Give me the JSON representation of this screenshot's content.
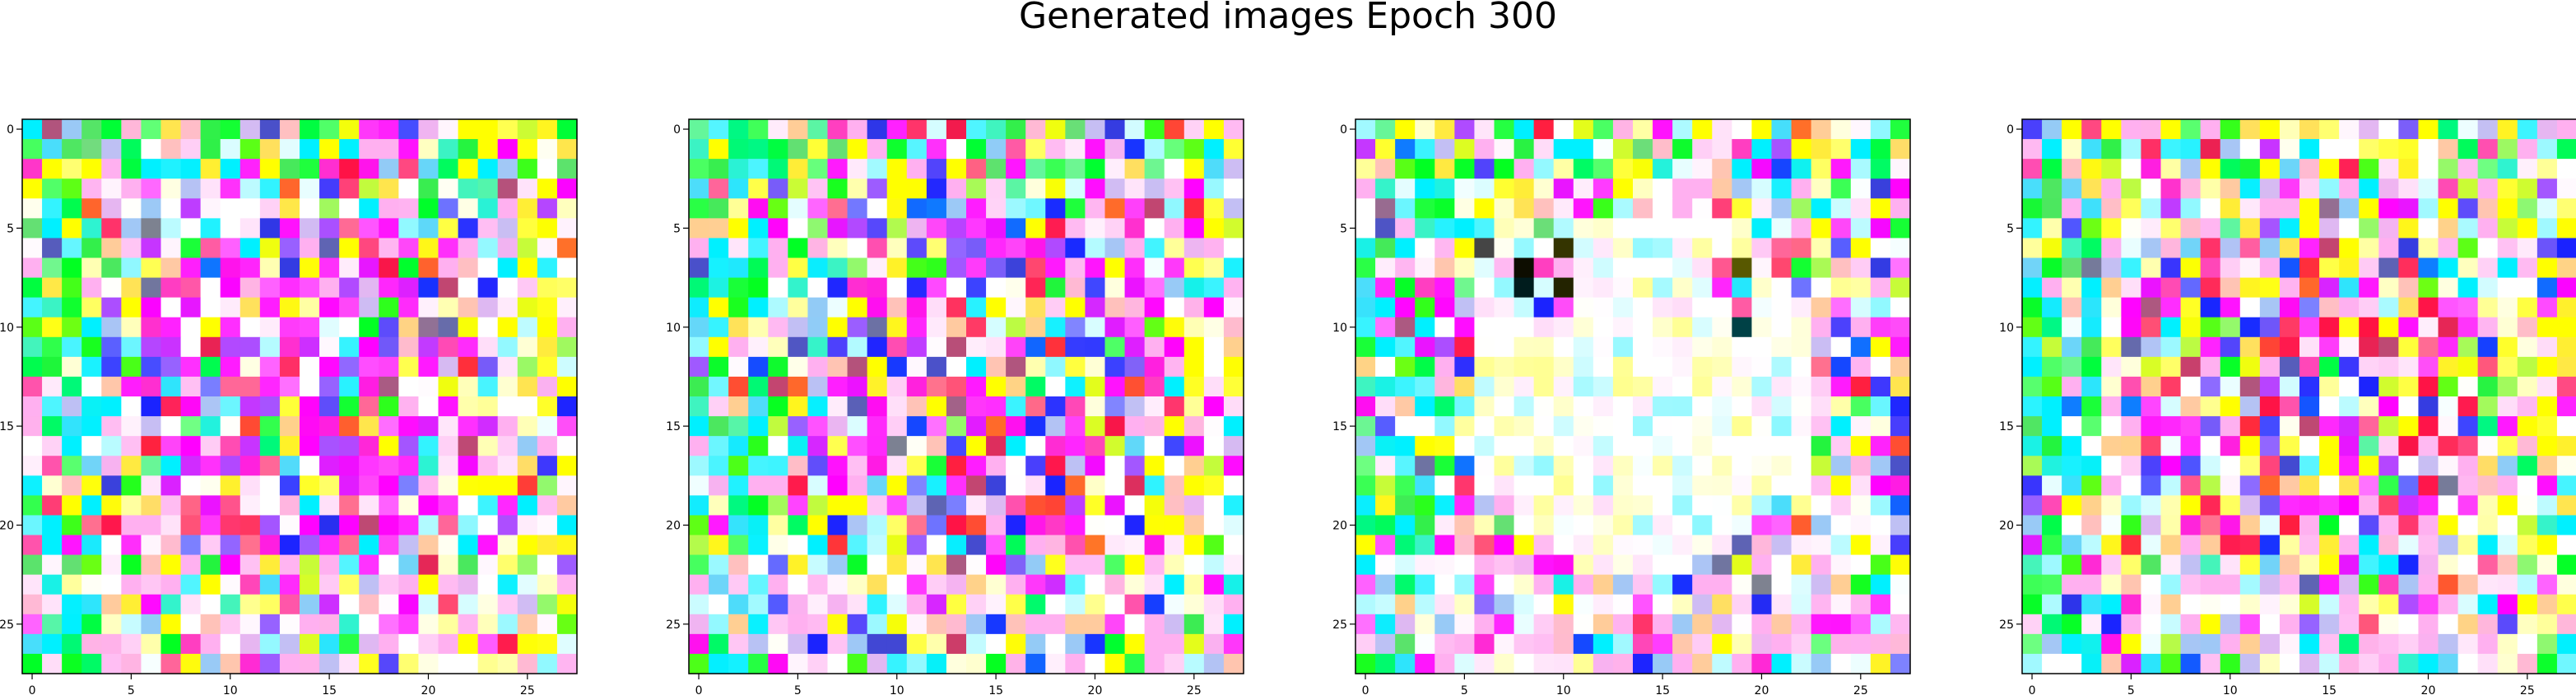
{
  "title": "Generated images Epoch 300",
  "chart_data": {
    "type": "heatmap",
    "title": "Generated images Epoch 300",
    "panels": 4,
    "grid_size": [
      28,
      28
    ],
    "x_ticks": [
      "0",
      "5",
      "10",
      "15",
      "20",
      "25"
    ],
    "y_ticks": [
      "0",
      "5",
      "10",
      "15",
      "20",
      "25"
    ],
    "xlim": [
      -0.5,
      27.5
    ],
    "ylim": [
      27.5,
      -0.5
    ],
    "palette": {
      "magenta": "#ff00ff",
      "yellow": "#ffff00",
      "green": "#00ff22",
      "cyan": "#00f0ff",
      "white": "#ffffff",
      "pink": "#ffb0f0",
      "blue": "#1a22ff",
      "red": "#ff1044",
      "black": "#000000"
    }
  }
}
